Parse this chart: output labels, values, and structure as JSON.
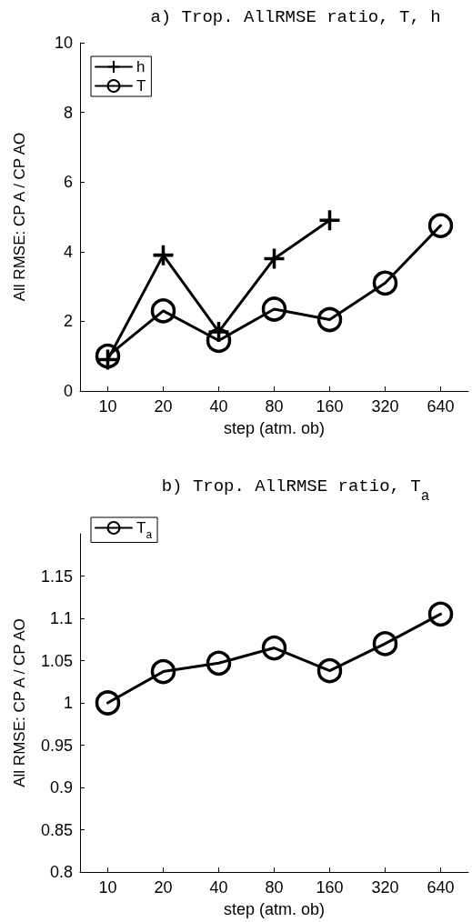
{
  "chart_data": [
    {
      "type": "line",
      "title": "a) Trop. AllRMSE ratio, T, h",
      "xlabel": "step (atm. ob)",
      "ylabel": "All RMSE: CP A / CP AO",
      "categories": [
        "10",
        "20",
        "40",
        "80",
        "160",
        "320",
        "640"
      ],
      "series": [
        {
          "name": "h",
          "color": "#000000",
          "marker": "cross",
          "values": [
            0.9,
            3.9,
            1.7,
            3.8,
            4.9,
            null,
            null
          ]
        },
        {
          "name": "T",
          "color": "#000000",
          "marker": "circle",
          "values": [
            1.0,
            2.3,
            1.45,
            2.35,
            2.05,
            3.1,
            4.75
          ]
        }
      ],
      "ylim": [
        0,
        10
      ],
      "yticks": [
        0,
        2,
        4,
        6,
        8,
        10
      ],
      "grid": false,
      "legend": "top left",
      "line_style": "solid"
    },
    {
      "type": "line",
      "title": "b) Trop. AllRMSE ratio, T$_{a}$",
      "xlabel": "step (atm. ob)",
      "ylabel": "All RMSE: CP A / CP AO",
      "categories": [
        "10",
        "20",
        "40",
        "80",
        "160",
        "320",
        "640"
      ],
      "series": [
        {
          "name": "T$_{a}$",
          "color": "#000000",
          "marker": "circle",
          "values": [
            1.0,
            1.037,
            1.047,
            1.065,
            1.038,
            1.07,
            1.105
          ]
        }
      ],
      "ylim": [
        0.8,
        1.2
      ],
      "yticks": [
        0.8,
        0.85,
        0.9,
        0.95,
        1,
        1.05,
        1.1,
        1.15
      ],
      "grid": false,
      "legend": "top left",
      "line_style": "solid"
    }
  ]
}
